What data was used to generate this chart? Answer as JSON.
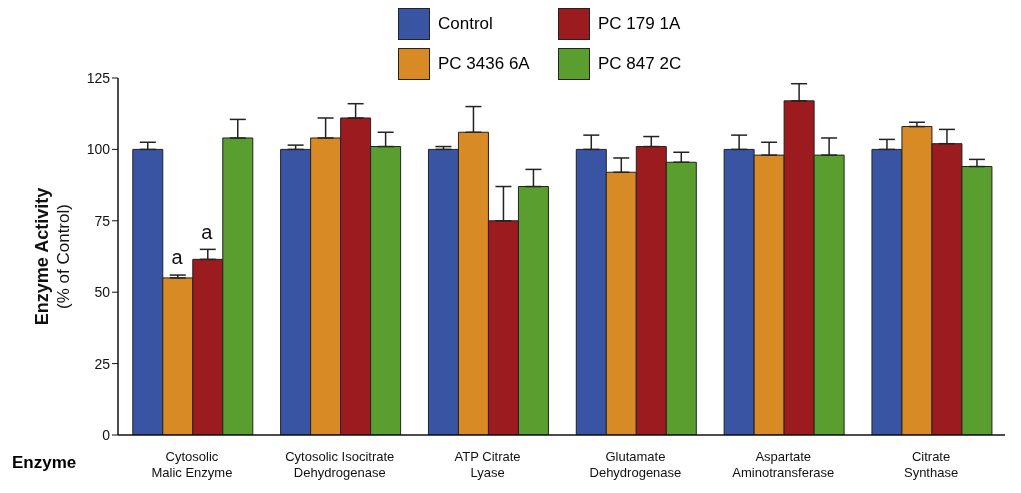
{
  "chart_data": {
    "type": "bar",
    "xlabel": "Enzyme",
    "ylabel": "Enzyme Activity\n(% of Control)",
    "categories": [
      "Cytosolic\nMalic Enzyme",
      "Cytosolic Isocitrate\nDehydrogenase",
      "ATP Citrate\nLyase",
      "Glutamate\nDehydrogenase",
      "Aspartate\nAminotransferase",
      "Citrate\nSynthase"
    ],
    "series": [
      {
        "name": "Control",
        "color": "#3a54a4",
        "values": [
          100,
          100,
          100,
          100,
          100,
          100
        ],
        "errors": [
          2.5,
          1.5,
          1,
          5,
          5,
          3.5
        ]
      },
      {
        "name": "PC 3436 6A",
        "color": "#d88a25",
        "values": [
          55,
          104,
          106,
          92,
          98,
          108
        ],
        "errors": [
          1,
          7,
          9,
          5,
          4.5,
          1.5
        ]
      },
      {
        "name": "PC 179 1A",
        "color": "#9b1b1f",
        "values": [
          61.5,
          111,
          75,
          101,
          117,
          102
        ],
        "errors": [
          3.5,
          5,
          12,
          3.5,
          6,
          5
        ]
      },
      {
        "name": "PC 847 2C",
        "color": "#5a9e2f",
        "values": [
          104,
          101,
          87,
          95.5,
          98,
          94
        ],
        "errors": [
          6.5,
          5,
          6,
          3.5,
          6,
          2.5
        ]
      }
    ],
    "annotations": [
      {
        "text": "a",
        "x": "Cytosolic\nMalic Enzyme",
        "y": 55
      },
      {
        "text": "a",
        "x": "Cytosolic\nMalic Enzyme",
        "y": 61.5
      }
    ],
    "ylim": [
      0,
      125
    ],
    "yticks": [
      0,
      25,
      50,
      75,
      100,
      125
    ],
    "grid": false,
    "legend": "top"
  }
}
